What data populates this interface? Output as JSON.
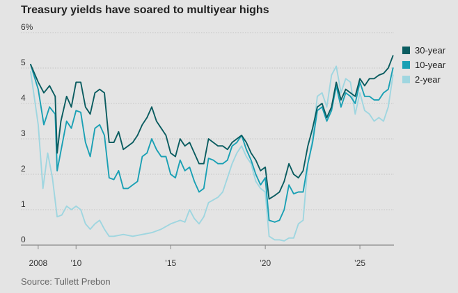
{
  "title": "Treasury yields have soared to multiyear highs",
  "source": "Source: Tullett Prebon",
  "chart_data": {
    "type": "line",
    "title": "Treasury yields have soared to multiyear highs",
    "xlabel": "",
    "ylabel": "",
    "ylim": [
      0,
      6
    ],
    "xlim": [
      2007.6,
      2026.8
    ],
    "grid": true,
    "legend_position": "top-right",
    "y_ticks": [
      {
        "value": 0,
        "label": "0"
      },
      {
        "value": 1,
        "label": "1"
      },
      {
        "value": 2,
        "label": "2"
      },
      {
        "value": 3,
        "label": "3"
      },
      {
        "value": 4,
        "label": "4"
      },
      {
        "value": 5,
        "label": "5"
      },
      {
        "value": 6,
        "label": "6%"
      }
    ],
    "x_ticks": [
      {
        "value": 2008,
        "label": "2008"
      },
      {
        "value": 2010,
        "label": "’10"
      },
      {
        "value": 2015,
        "label": "’15"
      },
      {
        "value": 2020,
        "label": "’20"
      },
      {
        "value": 2025,
        "label": "’25"
      }
    ],
    "series": [
      {
        "name": "30-year",
        "color": "#0a5c60",
        "points": [
          [
            2007.6,
            5.1
          ],
          [
            2008.0,
            4.6
          ],
          [
            2008.3,
            4.3
          ],
          [
            2008.6,
            4.5
          ],
          [
            2008.9,
            4.2
          ],
          [
            2009.0,
            2.6
          ],
          [
            2009.2,
            3.5
          ],
          [
            2009.5,
            4.2
          ],
          [
            2009.75,
            3.9
          ],
          [
            2010.0,
            4.6
          ],
          [
            2010.25,
            4.6
          ],
          [
            2010.5,
            3.9
          ],
          [
            2010.75,
            3.7
          ],
          [
            2011.0,
            4.3
          ],
          [
            2011.25,
            4.4
          ],
          [
            2011.5,
            4.3
          ],
          [
            2011.75,
            2.9
          ],
          [
            2012.0,
            2.9
          ],
          [
            2012.25,
            3.2
          ],
          [
            2012.5,
            2.7
          ],
          [
            2012.75,
            2.8
          ],
          [
            2013.0,
            2.9
          ],
          [
            2013.25,
            3.1
          ],
          [
            2013.5,
            3.4
          ],
          [
            2013.75,
            3.6
          ],
          [
            2014.0,
            3.9
          ],
          [
            2014.25,
            3.5
          ],
          [
            2014.5,
            3.3
          ],
          [
            2014.75,
            3.1
          ],
          [
            2015.0,
            2.6
          ],
          [
            2015.25,
            2.5
          ],
          [
            2015.5,
            3.0
          ],
          [
            2015.75,
            2.8
          ],
          [
            2016.0,
            2.9
          ],
          [
            2016.25,
            2.6
          ],
          [
            2016.5,
            2.3
          ],
          [
            2016.75,
            2.3
          ],
          [
            2017.0,
            3.0
          ],
          [
            2017.25,
            2.9
          ],
          [
            2017.5,
            2.8
          ],
          [
            2017.75,
            2.8
          ],
          [
            2018.0,
            2.7
          ],
          [
            2018.25,
            2.9
          ],
          [
            2018.5,
            3.0
          ],
          [
            2018.75,
            3.1
          ],
          [
            2019.0,
            2.9
          ],
          [
            2019.25,
            2.6
          ],
          [
            2019.5,
            2.4
          ],
          [
            2019.75,
            2.1
          ],
          [
            2020.0,
            2.2
          ],
          [
            2020.2,
            1.3
          ],
          [
            2020.5,
            1.4
          ],
          [
            2020.75,
            1.5
          ],
          [
            2021.0,
            1.8
          ],
          [
            2021.25,
            2.3
          ],
          [
            2021.5,
            2.0
          ],
          [
            2021.75,
            1.9
          ],
          [
            2022.0,
            2.1
          ],
          [
            2022.25,
            2.8
          ],
          [
            2022.5,
            3.3
          ],
          [
            2022.75,
            3.9
          ],
          [
            2023.0,
            4.0
          ],
          [
            2023.25,
            3.6
          ],
          [
            2023.5,
            3.9
          ],
          [
            2023.75,
            4.6
          ],
          [
            2024.0,
            4.1
          ],
          [
            2024.25,
            4.4
          ],
          [
            2024.5,
            4.3
          ],
          [
            2024.75,
            4.2
          ],
          [
            2025.0,
            4.7
          ],
          [
            2025.25,
            4.5
          ],
          [
            2025.5,
            4.7
          ],
          [
            2025.75,
            4.7
          ],
          [
            2026.0,
            4.8
          ],
          [
            2026.25,
            4.85
          ],
          [
            2026.5,
            5.0
          ],
          [
            2026.75,
            5.35
          ]
        ]
      },
      {
        "name": "10-year",
        "color": "#1aa0b4",
        "points": [
          [
            2007.6,
            5.1
          ],
          [
            2008.0,
            4.4
          ],
          [
            2008.3,
            3.4
          ],
          [
            2008.6,
            3.9
          ],
          [
            2008.9,
            3.7
          ],
          [
            2009.0,
            2.1
          ],
          [
            2009.25,
            2.8
          ],
          [
            2009.5,
            3.5
          ],
          [
            2009.75,
            3.3
          ],
          [
            2010.0,
            3.8
          ],
          [
            2010.25,
            3.75
          ],
          [
            2010.5,
            2.9
          ],
          [
            2010.75,
            2.5
          ],
          [
            2011.0,
            3.3
          ],
          [
            2011.25,
            3.4
          ],
          [
            2011.5,
            3.1
          ],
          [
            2011.75,
            1.9
          ],
          [
            2012.0,
            1.85
          ],
          [
            2012.25,
            2.1
          ],
          [
            2012.5,
            1.6
          ],
          [
            2012.75,
            1.6
          ],
          [
            2013.0,
            1.7
          ],
          [
            2013.25,
            1.8
          ],
          [
            2013.5,
            2.5
          ],
          [
            2013.75,
            2.6
          ],
          [
            2014.0,
            3.0
          ],
          [
            2014.25,
            2.7
          ],
          [
            2014.5,
            2.5
          ],
          [
            2014.75,
            2.5
          ],
          [
            2015.0,
            2.0
          ],
          [
            2015.25,
            1.9
          ],
          [
            2015.5,
            2.4
          ],
          [
            2015.75,
            2.1
          ],
          [
            2016.0,
            2.2
          ],
          [
            2016.25,
            1.8
          ],
          [
            2016.5,
            1.5
          ],
          [
            2016.75,
            1.6
          ],
          [
            2017.0,
            2.45
          ],
          [
            2017.25,
            2.4
          ],
          [
            2017.5,
            2.3
          ],
          [
            2017.75,
            2.3
          ],
          [
            2018.0,
            2.4
          ],
          [
            2018.25,
            2.8
          ],
          [
            2018.5,
            2.9
          ],
          [
            2018.75,
            3.1
          ],
          [
            2019.0,
            2.7
          ],
          [
            2019.25,
            2.4
          ],
          [
            2019.5,
            2.0
          ],
          [
            2019.75,
            1.7
          ],
          [
            2020.0,
            1.9
          ],
          [
            2020.2,
            0.7
          ],
          [
            2020.5,
            0.65
          ],
          [
            2020.75,
            0.7
          ],
          [
            2021.0,
            1.0
          ],
          [
            2021.25,
            1.7
          ],
          [
            2021.5,
            1.45
          ],
          [
            2021.75,
            1.5
          ],
          [
            2022.0,
            1.5
          ],
          [
            2022.25,
            2.3
          ],
          [
            2022.5,
            2.9
          ],
          [
            2022.75,
            3.8
          ],
          [
            2023.0,
            3.9
          ],
          [
            2023.25,
            3.5
          ],
          [
            2023.5,
            3.8
          ],
          [
            2023.75,
            4.5
          ],
          [
            2024.0,
            3.9
          ],
          [
            2024.25,
            4.3
          ],
          [
            2024.5,
            4.2
          ],
          [
            2024.75,
            4.0
          ],
          [
            2025.0,
            4.6
          ],
          [
            2025.25,
            4.2
          ],
          [
            2025.5,
            4.2
          ],
          [
            2025.75,
            4.1
          ],
          [
            2026.0,
            4.1
          ],
          [
            2026.25,
            4.3
          ],
          [
            2026.5,
            4.4
          ],
          [
            2026.75,
            5.0
          ]
        ]
      },
      {
        "name": "2-year",
        "color": "#9fd6e0",
        "points": [
          [
            2007.6,
            4.9
          ],
          [
            2008.0,
            3.4
          ],
          [
            2008.25,
            1.6
          ],
          [
            2008.5,
            2.6
          ],
          [
            2008.75,
            1.9
          ],
          [
            2009.0,
            0.8
          ],
          [
            2009.25,
            0.85
          ],
          [
            2009.5,
            1.1
          ],
          [
            2009.75,
            1.0
          ],
          [
            2010.0,
            1.1
          ],
          [
            2010.25,
            1.0
          ],
          [
            2010.5,
            0.6
          ],
          [
            2010.75,
            0.45
          ],
          [
            2011.0,
            0.6
          ],
          [
            2011.25,
            0.7
          ],
          [
            2011.5,
            0.45
          ],
          [
            2011.75,
            0.25
          ],
          [
            2012.0,
            0.25
          ],
          [
            2012.5,
            0.3
          ],
          [
            2013.0,
            0.25
          ],
          [
            2013.5,
            0.3
          ],
          [
            2014.0,
            0.35
          ],
          [
            2014.5,
            0.45
          ],
          [
            2015.0,
            0.6
          ],
          [
            2015.5,
            0.7
          ],
          [
            2015.75,
            0.65
          ],
          [
            2016.0,
            1.0
          ],
          [
            2016.25,
            0.75
          ],
          [
            2016.5,
            0.6
          ],
          [
            2016.75,
            0.8
          ],
          [
            2017.0,
            1.2
          ],
          [
            2017.5,
            1.35
          ],
          [
            2017.75,
            1.5
          ],
          [
            2018.0,
            1.9
          ],
          [
            2018.25,
            2.3
          ],
          [
            2018.5,
            2.6
          ],
          [
            2018.75,
            2.8
          ],
          [
            2019.0,
            2.5
          ],
          [
            2019.25,
            2.3
          ],
          [
            2019.5,
            1.8
          ],
          [
            2019.75,
            1.6
          ],
          [
            2020.0,
            1.5
          ],
          [
            2020.2,
            0.25
          ],
          [
            2020.5,
            0.15
          ],
          [
            2020.75,
            0.15
          ],
          [
            2021.0,
            0.12
          ],
          [
            2021.25,
            0.2
          ],
          [
            2021.5,
            0.2
          ],
          [
            2021.75,
            0.6
          ],
          [
            2022.0,
            0.7
          ],
          [
            2022.25,
            2.3
          ],
          [
            2022.5,
            3.0
          ],
          [
            2022.75,
            4.2
          ],
          [
            2023.0,
            4.3
          ],
          [
            2023.25,
            3.9
          ],
          [
            2023.5,
            4.8
          ],
          [
            2023.75,
            5.05
          ],
          [
            2024.0,
            4.3
          ],
          [
            2024.25,
            4.7
          ],
          [
            2024.5,
            4.6
          ],
          [
            2024.75,
            3.7
          ],
          [
            2025.0,
            4.3
          ],
          [
            2025.25,
            3.8
          ],
          [
            2025.5,
            3.7
          ],
          [
            2025.75,
            3.5
          ],
          [
            2026.0,
            3.6
          ],
          [
            2026.25,
            3.5
          ],
          [
            2026.5,
            3.9
          ],
          [
            2026.75,
            4.8
          ]
        ]
      }
    ]
  }
}
